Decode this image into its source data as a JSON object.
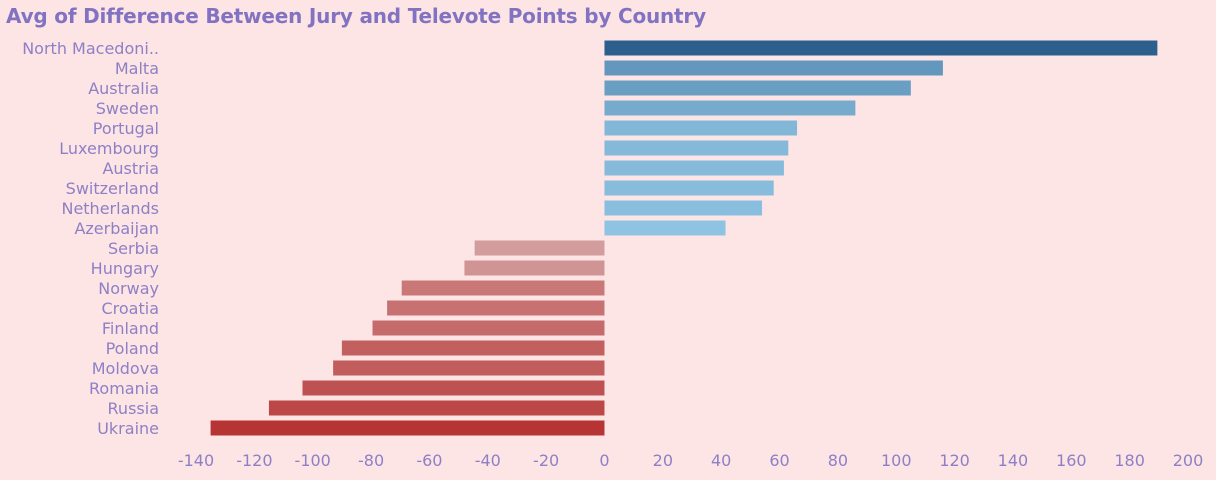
{
  "chart_data": {
    "type": "bar",
    "orientation": "horizontal",
    "title": "Avg of Difference Between Jury and Televote Points by Country",
    "xlabel": "",
    "ylabel": "",
    "xlim": [
      -140,
      200
    ],
    "x_ticks": [
      "-140",
      "-120",
      "-100",
      "-80",
      "-60",
      "-40",
      "-20",
      "0",
      "20",
      "40",
      "60",
      "80",
      "100",
      "120",
      "140",
      "160",
      "180",
      "200"
    ],
    "grid": false,
    "categories": [
      "North Macedoni..",
      "Malta",
      "Australia",
      "Sweden",
      "Portugal",
      "Luxembourg",
      "Austria",
      "Switzerland",
      "Netherlands",
      "Azerbaijan",
      "Serbia",
      "Hungary",
      "Norway",
      "Croatia",
      "Finland",
      "Poland",
      "Moldova",
      "Romania",
      "Russia",
      "Ukraine"
    ],
    "values": [
      189.5,
      116,
      105,
      86,
      66,
      63,
      61.5,
      58,
      54,
      41.5,
      -44.5,
      -48,
      -69.5,
      -74.5,
      -79.5,
      -90,
      -93,
      -103.5,
      -115,
      -135
    ],
    "color_scale": {
      "negative_max": "#b63434",
      "negative_min": "#d39c9d",
      "positive_min": "#8ec3e2",
      "positive_max": "#2c5f8e"
    }
  }
}
